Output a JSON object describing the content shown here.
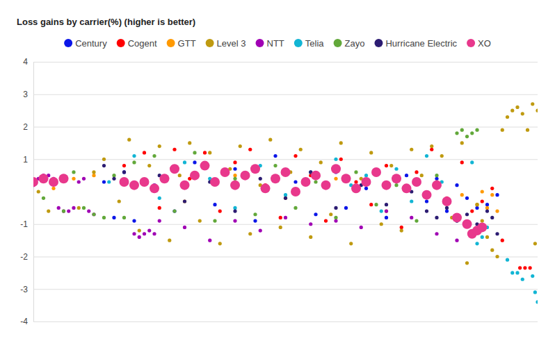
{
  "chart_data": {
    "type": "scatter",
    "title": "Loss gains by carrier(%) (higher is better)",
    "xlim": [
      0,
      100
    ],
    "ylim": [
      -4,
      4
    ],
    "yticks": [
      4,
      3,
      2,
      1,
      -1,
      -2,
      -3,
      -4
    ],
    "grid": true,
    "legend": "top",
    "tick_labels": "y",
    "series": [
      {
        "name": "Century",
        "color": "#0b16e8",
        "marker": "circle",
        "x": [
          14,
          16,
          18,
          20,
          24,
          28,
          32,
          36,
          40,
          44,
          48,
          52,
          56,
          60,
          62,
          66,
          70,
          74,
          78,
          80,
          82,
          84,
          86,
          88,
          90,
          92
        ],
        "values": [
          0.3,
          -0.8,
          0.6,
          -0.9,
          0.2,
          -0.6,
          0.9,
          -0.4,
          0.7,
          -0.9,
          1.1,
          0.3,
          -0.7,
          0.6,
          -0.5,
          0.1,
          -0.8,
          0.5,
          -0.3,
          0.4,
          -0.6,
          0.2,
          -0.2,
          -0.5,
          -0.4,
          -0.1
        ]
      },
      {
        "name": "Cogent",
        "color": "#ff0000",
        "marker": "circle",
        "x": [
          18,
          22,
          25,
          28,
          31,
          34,
          37,
          40,
          43,
          46,
          49,
          52,
          55,
          58,
          61,
          64,
          67,
          70,
          73,
          76,
          79,
          82,
          85,
          87,
          89,
          91,
          93,
          96.5,
          97.5,
          98.5
        ],
        "values": [
          0.8,
          1.2,
          -0.5,
          1.3,
          0.4,
          1.2,
          -0.6,
          0.9,
          1.3,
          0.2,
          -0.8,
          1.1,
          0.5,
          -0.9,
          1.0,
          0.3,
          -0.4,
          0.8,
          -1.1,
          0.6,
          1.3,
          -0.2,
          0.9,
          -0.6,
          -0.3,
          0.1,
          -1.5,
          -2.35,
          -2.35,
          -2.35
        ]
      },
      {
        "name": "GTT",
        "color": "#ff9900",
        "marker": "circle",
        "x": [
          4,
          8,
          12,
          20,
          30,
          40,
          50,
          60,
          70,
          80,
          85,
          88,
          89,
          90,
          91,
          92
        ],
        "values": [
          0.1,
          0.4,
          0.5,
          0.2,
          -0.3,
          0.5,
          -0.2,
          0.4,
          -0.6,
          0.3,
          -0.1,
          -0.4,
          0.0,
          -0.5,
          -0.1,
          -0.6
        ]
      },
      {
        "name": "Level 3",
        "color": "#bf9a10",
        "marker": "circle",
        "x": [
          1,
          3,
          6,
          9,
          12,
          14,
          17,
          19,
          21,
          23,
          25,
          27,
          29,
          31,
          33,
          35,
          37,
          39,
          41,
          43,
          45,
          47,
          49,
          51,
          53,
          55,
          57,
          59,
          61,
          63,
          65,
          67,
          69,
          71,
          73,
          75,
          77,
          79,
          81,
          83,
          85,
          86,
          88,
          89,
          90,
          91,
          92,
          93,
          94,
          95,
          96,
          97,
          98,
          99,
          99.5,
          100
        ],
        "values": [
          0.0,
          -0.6,
          0.4,
          -0.5,
          0.6,
          1.0,
          -0.3,
          1.6,
          -1.2,
          0.8,
          1.4,
          -1.5,
          0.5,
          1.5,
          -0.9,
          1.2,
          -1.6,
          0.7,
          1.4,
          -1.3,
          0.2,
          1.6,
          -1.1,
          0.6,
          1.3,
          -1.4,
          0.9,
          -0.7,
          1.5,
          -1.6,
          0.4,
          1.2,
          -1.0,
          0.8,
          -1.2,
          1.3,
          0.5,
          1.4,
          1.1,
          -0.8,
          1.5,
          -2.2,
          -0.4,
          -0.9,
          -1.4,
          -1.8,
          -2.0,
          1.9,
          2.3,
          2.5,
          2.6,
          2.4,
          1.9,
          2.7,
          -1.6,
          2.5
        ]
      },
      {
        "name": "NTT",
        "color": "#a000b4",
        "marker": "circle",
        "x": [
          0,
          1,
          2,
          3,
          4,
          5,
          6,
          7,
          8,
          9,
          10,
          11,
          12,
          20,
          21,
          22,
          23,
          24,
          25,
          30,
          35,
          40,
          45,
          50,
          55,
          60,
          65,
          70,
          75,
          80,
          84
        ],
        "values": [
          0.2,
          0.4,
          0.5,
          0.5,
          0.4,
          -0.5,
          -0.6,
          -0.6,
          -0.5,
          0.3,
          0.4,
          -0.6,
          -0.7,
          -1.3,
          -1.4,
          -1.3,
          -1.2,
          -1.3,
          -0.9,
          -1.1,
          -1.5,
          -0.9,
          -1.2,
          -0.8,
          -1.0,
          -0.9,
          -1.1,
          -0.6,
          -0.8,
          -1.3,
          -1.5
        ]
      },
      {
        "name": "Telia",
        "color": "#12b5d4",
        "marker": "circle",
        "x": [
          15,
          20,
          25,
          30,
          35,
          40,
          45,
          50,
          55,
          60,
          63,
          66,
          69,
          72,
          75,
          78,
          81,
          84,
          87,
          88,
          89,
          90,
          94,
          95,
          96,
          97,
          99,
          99.5,
          100
        ],
        "values": [
          0.3,
          1.1,
          -0.2,
          0.9,
          0.4,
          -0.5,
          0.8,
          -0.1,
          0.6,
          1.0,
          0.2,
          0.5,
          -0.6,
          0.7,
          -0.3,
          1.1,
          0.3,
          -0.9,
          0.9,
          -1.6,
          -1.4,
          -1.1,
          -2.1,
          -2.5,
          -2.5,
          -2.7,
          -2.6,
          -3.1,
          -3.4
        ]
      },
      {
        "name": "Zayo",
        "color": "#62a83a",
        "marker": "circle",
        "x": [
          2,
          4,
          6,
          8,
          10,
          12,
          14,
          16,
          18,
          20,
          24,
          28,
          32,
          36,
          40,
          44,
          48,
          52,
          56,
          60,
          64,
          68,
          72,
          76,
          80,
          84,
          85,
          86,
          87,
          88
        ],
        "values": [
          -0.2,
          0.3,
          -0.6,
          0.6,
          -0.5,
          -0.7,
          -0.8,
          0.5,
          -0.8,
          0.9,
          1.1,
          -0.6,
          1.2,
          -0.9,
          0.4,
          -0.7,
          0.8,
          -0.5,
          0.3,
          -0.8,
          0.6,
          -0.4,
          0.2,
          -0.9,
          0.5,
          1.8,
          1.9,
          1.7,
          1.8,
          1.9
        ]
      },
      {
        "name": "Hurricane Electric",
        "color": "#2c1c72",
        "marker": "circle",
        "x": [
          14,
          16,
          18,
          20,
          25,
          30,
          35,
          40,
          45,
          50,
          55,
          60,
          65,
          70,
          75,
          78,
          80,
          82,
          84,
          86,
          88,
          90,
          91,
          92
        ],
        "values": [
          0.8,
          0.4,
          0.6,
          0.2,
          0.5,
          -0.3,
          0.3,
          -0.6,
          0.4,
          -0.2,
          0.6,
          -0.5,
          0.2,
          -0.4,
          0.0,
          -0.6,
          -0.8,
          -0.5,
          -0.9,
          -0.7,
          -1.0,
          -0.6,
          -0.8,
          -1.3
        ]
      },
      {
        "name": "XO",
        "color": "#e8388c",
        "marker": "big-circle",
        "x": [
          0,
          2,
          4,
          6,
          18,
          20,
          22,
          24,
          26,
          28,
          30,
          32,
          34,
          36,
          38,
          40,
          42,
          44,
          46,
          48,
          50,
          52,
          54,
          56,
          58,
          60,
          62,
          64,
          66,
          68,
          70,
          72,
          74,
          76,
          78,
          80,
          82,
          84,
          86,
          87,
          88,
          89
        ],
        "values": [
          0.3,
          0.4,
          0.3,
          0.4,
          0.3,
          0.2,
          0.3,
          0.1,
          0.4,
          0.7,
          0.2,
          0.5,
          0.8,
          0.3,
          0.6,
          0.2,
          0.5,
          0.7,
          0.1,
          0.4,
          0.6,
          0.0,
          0.3,
          0.5,
          0.2,
          0.7,
          0.4,
          0.1,
          0.3,
          0.6,
          0.2,
          0.4,
          0.1,
          0.3,
          -0.1,
          0.2,
          -0.3,
          -0.8,
          -1.0,
          -1.3,
          -1.2,
          -1.1
        ]
      }
    ]
  }
}
